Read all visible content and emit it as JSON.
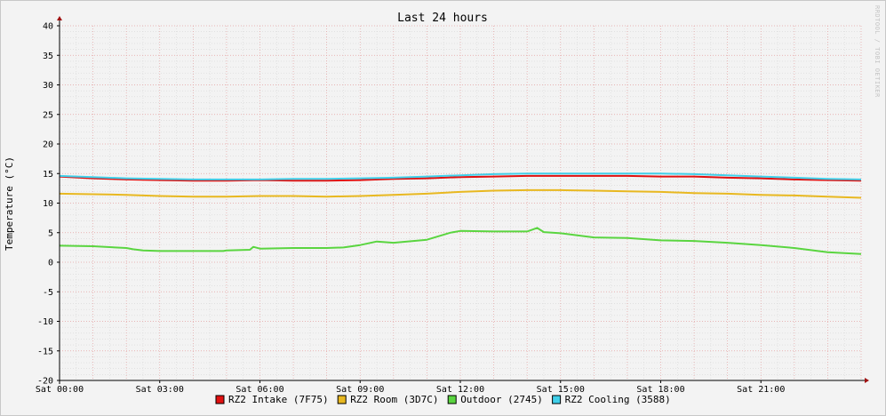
{
  "chart_data": {
    "type": "line",
    "title": "Last 24 hours",
    "ylabel": "Temperature (°C)",
    "watermark": "RRDTOOL / TOBI OETIKER",
    "ylim": [
      -20,
      40
    ],
    "yticks": [
      40,
      35,
      30,
      25,
      20,
      15,
      10,
      5,
      0,
      -5,
      -10,
      -15,
      -20
    ],
    "xlim": [
      0,
      24
    ],
    "x_tick_values": [
      0,
      3,
      6,
      9,
      12,
      15,
      18,
      21
    ],
    "x_tick_labels": [
      "Sat 00:00",
      "Sat 03:00",
      "Sat 06:00",
      "Sat 09:00",
      "Sat 12:00",
      "Sat 15:00",
      "Sat 18:00",
      "Sat 21:00"
    ],
    "grid": true,
    "legend_position": "bottom",
    "series": [
      {
        "name": "RZ2 Intake (7F75)",
        "color": "#e01010",
        "x": [
          0,
          1,
          2,
          3,
          4,
          5,
          6,
          7,
          8,
          9,
          10,
          11,
          12,
          13,
          14,
          15,
          16,
          17,
          18,
          19,
          20,
          21,
          22,
          23,
          24
        ],
        "y": [
          14.5,
          14.2,
          14.0,
          13.9,
          13.8,
          13.8,
          13.9,
          13.8,
          13.8,
          13.9,
          14.1,
          14.2,
          14.4,
          14.5,
          14.6,
          14.6,
          14.6,
          14.6,
          14.5,
          14.5,
          14.3,
          14.2,
          14.0,
          13.9,
          13.8
        ]
      },
      {
        "name": "RZ2 Room (3D7C)",
        "color": "#e8b820",
        "x": [
          0,
          1,
          2,
          3,
          4,
          5,
          6,
          7,
          8,
          9,
          10,
          11,
          12,
          13,
          14,
          15,
          16,
          17,
          18,
          19,
          20,
          21,
          22,
          23,
          24
        ],
        "y": [
          11.6,
          11.5,
          11.4,
          11.2,
          11.1,
          11.1,
          11.2,
          11.2,
          11.1,
          11.2,
          11.4,
          11.6,
          11.9,
          12.1,
          12.2,
          12.2,
          12.1,
          12.0,
          11.9,
          11.7,
          11.6,
          11.4,
          11.3,
          11.1,
          10.9
        ]
      },
      {
        "name": "Outdoor (2745)",
        "color": "#5ad540",
        "x": [
          0,
          1,
          2,
          2.2,
          2.5,
          3,
          4,
          4.9,
          5,
          5.7,
          5.8,
          6,
          7,
          8,
          8.5,
          9,
          9.5,
          10,
          11,
          11.7,
          12,
          13,
          14,
          14.3,
          14.5,
          15,
          16,
          17,
          18,
          19,
          20,
          21,
          22,
          23,
          24
        ],
        "y": [
          2.8,
          2.7,
          2.4,
          2.2,
          2.0,
          1.9,
          1.9,
          1.9,
          2.0,
          2.1,
          2.6,
          2.3,
          2.4,
          2.4,
          2.5,
          2.9,
          3.5,
          3.3,
          3.8,
          5.0,
          5.3,
          5.2,
          5.2,
          5.8,
          5.1,
          4.9,
          4.2,
          4.1,
          3.7,
          3.6,
          3.3,
          2.9,
          2.4,
          1.7,
          1.4
        ]
      },
      {
        "name": "RZ2 Cooling (3588)",
        "color": "#40d0ea",
        "x": [
          0,
          1,
          2,
          3,
          4,
          5,
          6,
          7,
          8,
          9,
          10,
          11,
          12,
          13,
          14,
          15,
          16,
          17,
          18,
          19,
          20,
          21,
          22,
          23,
          24
        ],
        "y": [
          14.6,
          14.4,
          14.2,
          14.1,
          14.0,
          14.0,
          14.0,
          14.1,
          14.1,
          14.2,
          14.3,
          14.5,
          14.7,
          14.9,
          15.0,
          15.0,
          15.0,
          15.0,
          15.0,
          14.9,
          14.7,
          14.5,
          14.3,
          14.1,
          14.0
        ]
      }
    ]
  }
}
